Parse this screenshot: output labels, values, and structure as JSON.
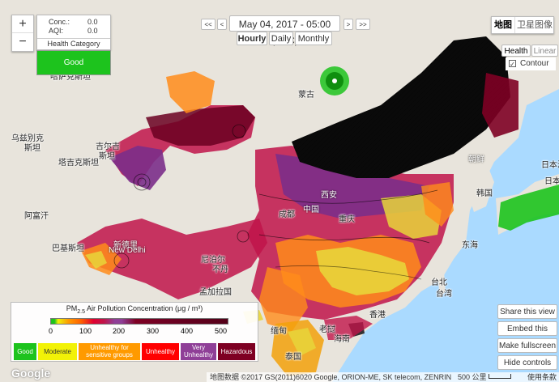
{
  "info": {
    "conc_label": "Conc.:",
    "conc_value": "0.0",
    "aqi_label": "AQI:",
    "aqi_value": "0.0",
    "category_label": "Health Category",
    "category_value": "Good",
    "category_color": "#1dc31d"
  },
  "zoom": {
    "in": "+",
    "out": "−"
  },
  "timebar": {
    "first": "<<",
    "prev": "<",
    "datetime": "May 04, 2017 - 05:00 (UTC)",
    "next": ">",
    "last": ">>"
  },
  "period_tabs": [
    {
      "label": "Hourly",
      "active": true
    },
    {
      "label": "Daily",
      "active": false
    },
    {
      "label": "Monthly",
      "active": false
    }
  ],
  "maptype": {
    "map": "地图",
    "satellite": "卫星图像"
  },
  "scale_mode": {
    "health": "Health",
    "linear": "Linear",
    "contour_label": "Contour",
    "contour_checked": true
  },
  "legend": {
    "title_pre": "PM",
    "title_sub": "2.5",
    "title_post": " Air Pollution Concentration (μg / m³)",
    "ticks": [
      "0",
      "100",
      "200",
      "300",
      "400",
      "500"
    ],
    "categories": [
      {
        "label": "Good",
        "color": "#1dc31d"
      },
      {
        "label": "Moderate",
        "color": "#f2f207"
      },
      {
        "label": "Unhealthy for sensitive groups",
        "color": "#ff9a00"
      },
      {
        "label": "Unhealthy",
        "color": "#ff0000"
      },
      {
        "label": "Very Unhealthy",
        "color": "#8f3f97"
      },
      {
        "label": "Hazardous",
        "color": "#7e0023"
      }
    ]
  },
  "actions": {
    "share": "Share this view",
    "embed": "Embed this view",
    "fullscreen": "Make fullscreen",
    "hide": "Hide controls"
  },
  "attribution": {
    "logo": "Google",
    "copyright": "地图数据 ©2017 GS(2011)6020 Google, ORION-ME, SK telecom, ZENRIN",
    "scale": "500 公里",
    "terms": "使用条款"
  },
  "places": [
    {
      "name": "蒙古",
      "cls": ""
    },
    {
      "name": "哈萨克斯坦",
      "cls": ""
    },
    {
      "name": "乌兹别克",
      "cls": ""
    },
    {
      "name": "斯坦",
      "cls": ""
    },
    {
      "name": "吉尔吉",
      "cls": ""
    },
    {
      "name": "斯坦",
      "cls": ""
    },
    {
      "name": "塔吉克斯坦",
      "cls": ""
    },
    {
      "name": "阿富汗",
      "cls": ""
    },
    {
      "name": "巴基斯坦",
      "cls": ""
    },
    {
      "name": "新德里",
      "cls": "dark"
    },
    {
      "name": "New Delhi",
      "cls": "dark"
    },
    {
      "name": "中国",
      "cls": "dark"
    },
    {
      "name": "朝鲜",
      "cls": "dark"
    },
    {
      "name": "韩国",
      "cls": ""
    },
    {
      "name": "日本海",
      "cls": ""
    },
    {
      "name": "日本",
      "cls": ""
    },
    {
      "name": "东海",
      "cls": ""
    },
    {
      "name": "台北",
      "cls": ""
    },
    {
      "name": "台湾",
      "cls": ""
    },
    {
      "name": "尼泊尔",
      "cls": ""
    },
    {
      "name": "不丹",
      "cls": ""
    },
    {
      "name": "孟加拉国",
      "cls": ""
    },
    {
      "name": "缅甸",
      "cls": ""
    },
    {
      "name": "泰国",
      "cls": ""
    },
    {
      "name": "老挝",
      "cls": ""
    },
    {
      "name": "海南",
      "cls": ""
    },
    {
      "name": "香港",
      "cls": ""
    },
    {
      "name": "西安",
      "cls": "dark"
    },
    {
      "name": "成都",
      "cls": ""
    },
    {
      "name": "重庆",
      "cls": ""
    }
  ]
}
